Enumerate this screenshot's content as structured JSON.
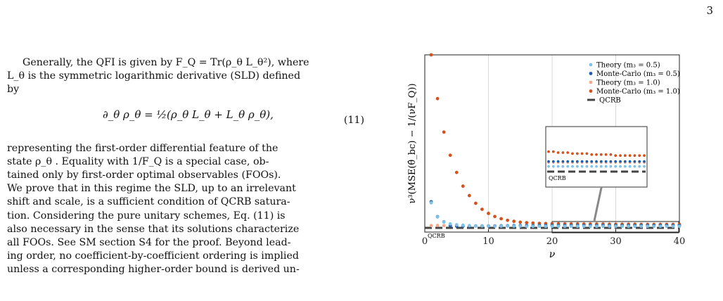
{
  "page_number": "3",
  "left_column": {
    "p1_line1": "Generally, the QFI is given by F_Q = Tr(ρ_θ L_θ²), where",
    "p1_line2": "L_θ is the symmetric logarithmic derivative (SLD) defined",
    "p1_line3": "by",
    "equation_text": "∂_θ ρ_θ = ½(ρ_θ L_θ + L_θ ρ_θ),",
    "equation_number": "(11)",
    "p2_lines": [
      "representing the first-order differential feature of the",
      "state ρ_θ . Equality with 1/F_Q is a special case, ob-",
      "tained only by first-order optimal observables (FOOs).",
      "We prove that in this regime the SLD, up to an irrelevant",
      "shift and scale, is a sufficient condition of QCRB satura-",
      "tion. Considering the pure unitary schemes, Eq. (11) is",
      "also necessary in the sense that its solutions characterize",
      "all FOOs. See SM section S4 for the proof. Beyond lead-",
      "ing order, no coefficient-by-coefficient ordering is implied",
      "unless a corresponding higher-order bound is derived un-"
    ]
  },
  "chart_data": {
    "type": "scatter",
    "xlabel": "ν",
    "ylabel": "ν³(MSE(θ̂_bc) − 1/(νF_Q))",
    "xlim": [
      0,
      40
    ],
    "ylim": [
      0,
      1
    ],
    "xticks": [
      "0",
      "10",
      "20",
      "30",
      "40"
    ],
    "grid": "vertical lines at x ticks",
    "legend_position": "top-right",
    "qcrb_level": 0.0,
    "qcrb_label": "QCRB",
    "series": [
      {
        "name": "Theory (m₃ = 0.5)",
        "color": "#7ec3e6",
        "x": [
          1,
          2,
          3,
          4,
          5,
          6,
          7,
          8,
          9,
          10,
          11,
          12,
          13,
          14,
          15,
          16,
          17,
          18,
          19,
          20,
          21,
          22,
          23,
          24,
          25,
          26,
          27,
          28,
          29,
          30,
          31,
          32,
          33,
          34,
          35,
          36,
          37,
          38,
          39,
          40
        ],
        "values": [
          0.138,
          0.055,
          0.026,
          0.015,
          0.01,
          0.007,
          0.005,
          0.004,
          0.003,
          0.003,
          0.002,
          0.002,
          0.002,
          0.002,
          0.002,
          0.001,
          0.001,
          0.001,
          0.001,
          0.001,
          0.001,
          0.001,
          0.001,
          0.001,
          0.001,
          0.001,
          0.001,
          0.001,
          0.001,
          0.001,
          0.001,
          0.001,
          0.001,
          0.001,
          0.001,
          0.001,
          0.001,
          0.001,
          0.001,
          0.001
        ]
      },
      {
        "name": "Monte-Carlo (m₃ = 0.5)",
        "color": "#1f5fa8",
        "x": [
          1,
          2,
          3,
          4,
          5,
          6,
          7,
          8,
          9,
          10,
          11,
          12,
          13,
          14,
          15,
          16,
          17,
          18,
          19,
          20,
          21,
          22,
          23,
          24,
          25,
          26,
          27,
          28,
          29,
          30,
          31,
          32,
          33,
          34,
          35,
          36,
          37,
          38,
          39,
          40
        ],
        "values": [
          0.144,
          0.057,
          0.027,
          0.004,
          0.002,
          0.002,
          0.002,
          0.003,
          0.003,
          0.003,
          0.003,
          0.004,
          0.004,
          0.005,
          0.005,
          0.005,
          0.005,
          0.006,
          0.006,
          0.006,
          0.006,
          0.006,
          0.006,
          0.006,
          0.006,
          0.006,
          0.006,
          0.006,
          0.006,
          0.006,
          0.006,
          0.006,
          0.006,
          0.006,
          0.006,
          0.006,
          0.006,
          0.006,
          0.006,
          0.006
        ]
      },
      {
        "name": "Theory (m₃ = 1.0)",
        "color": "#f3a98a",
        "x": [
          1,
          2,
          3,
          4,
          5,
          6,
          7,
          8,
          9,
          10,
          11,
          12,
          13,
          14,
          15,
          16,
          17,
          18,
          19,
          20,
          21,
          22,
          23,
          24,
          25,
          26,
          27,
          28,
          29,
          30,
          31,
          32,
          33,
          34,
          35,
          36,
          37,
          38,
          39,
          40
        ],
        "values": [
          0.005,
          0.006,
          0.005,
          0.005,
          0.004,
          0.004,
          0.004,
          0.004,
          0.004,
          0.004,
          0.004,
          0.004,
          0.004,
          0.004,
          0.005,
          0.005,
          0.005,
          0.005,
          0.005,
          0.005,
          0.005,
          0.005,
          0.005,
          0.005,
          0.005,
          0.005,
          0.005,
          0.005,
          0.005,
          0.005,
          0.005,
          0.005,
          0.005,
          0.005,
          0.005,
          0.005,
          0.005,
          0.005,
          0.005,
          0.005
        ]
      },
      {
        "name": "Monte-Carlo (m₃ = 1.0)",
        "color": "#d4531c",
        "x": [
          1,
          2,
          3,
          4,
          5,
          6,
          7,
          8,
          9,
          10,
          11,
          12,
          13,
          14,
          15,
          16,
          17,
          18,
          19,
          20,
          21,
          22,
          23,
          24,
          25,
          26,
          27,
          28,
          29,
          30,
          31,
          32,
          33,
          34,
          35,
          36,
          37,
          38,
          39,
          40
        ],
        "values": [
          1.0,
          0.745,
          0.55,
          0.415,
          0.315,
          0.235,
          0.18,
          0.135,
          0.1,
          0.076,
          0.058,
          0.045,
          0.036,
          0.03,
          0.025,
          0.022,
          0.02,
          0.018,
          0.017,
          0.016,
          0.016,
          0.015,
          0.015,
          0.015,
          0.014,
          0.014,
          0.014,
          0.014,
          0.013,
          0.013,
          0.013,
          0.013,
          0.013,
          0.012,
          0.012,
          0.012,
          0.012,
          0.012,
          0.012,
          0.012
        ]
      }
    ],
    "inset": {
      "zoom_region_x": [
        20,
        40
      ],
      "label": "QCRB"
    }
  }
}
